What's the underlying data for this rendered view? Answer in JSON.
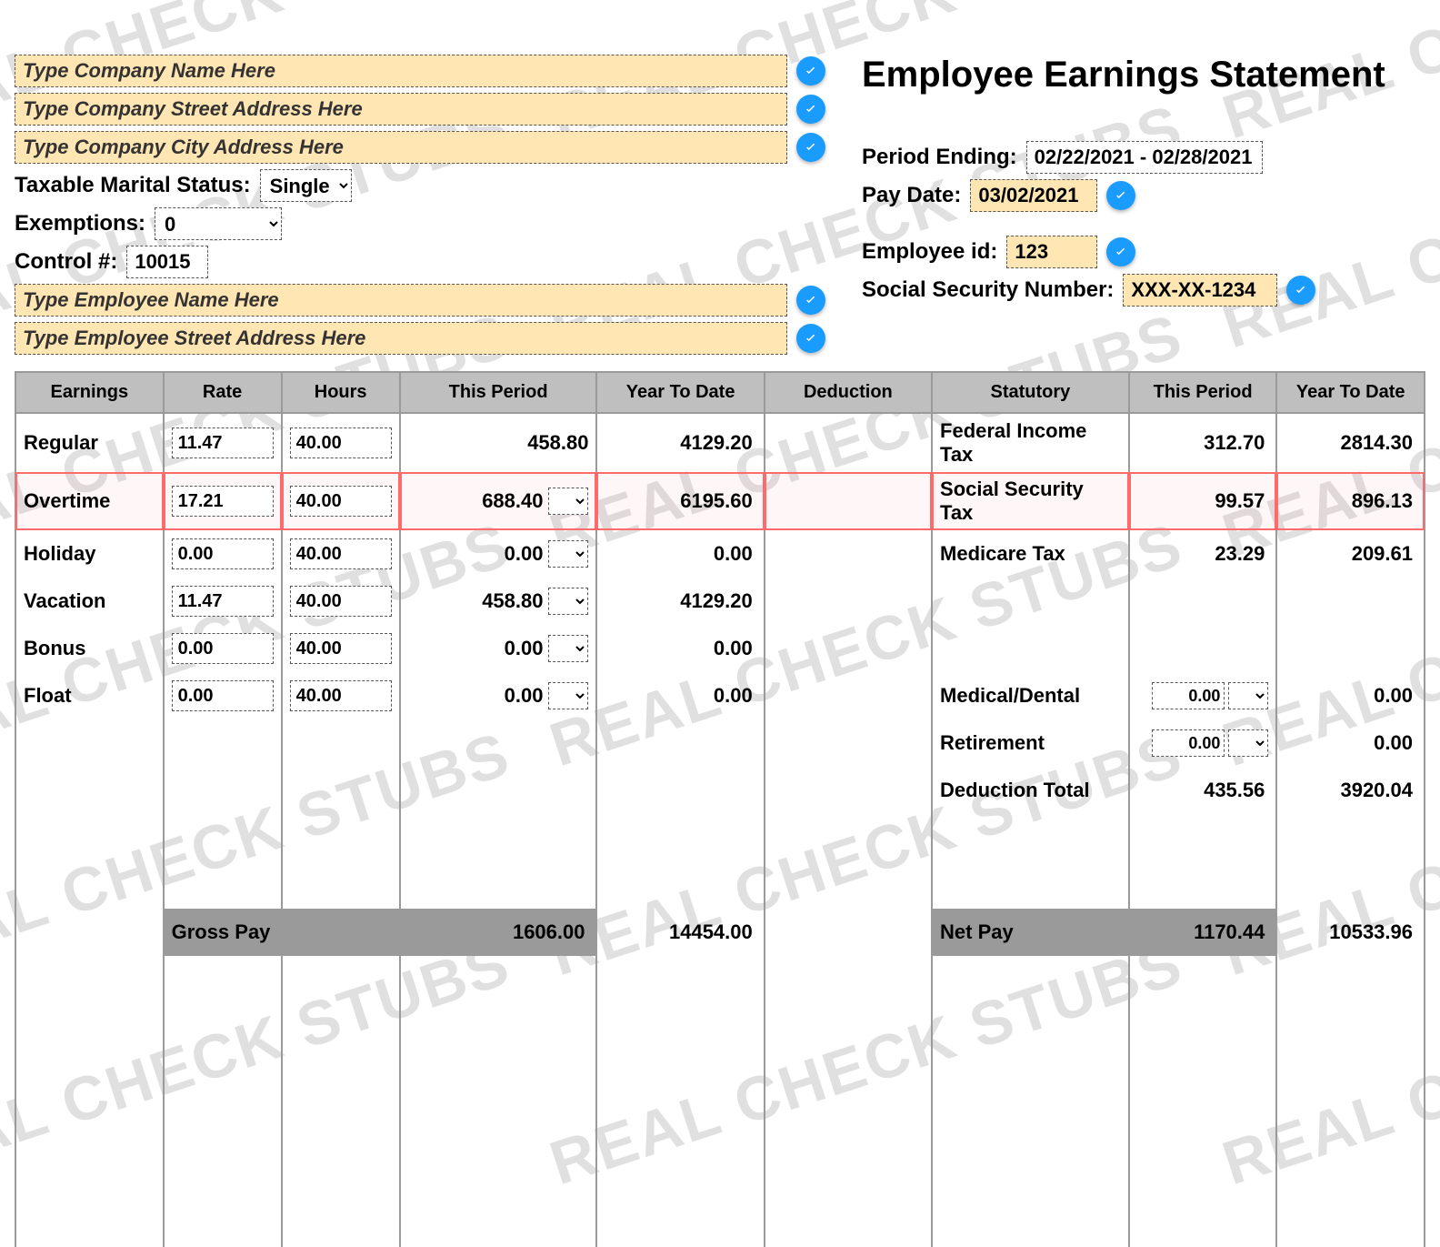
{
  "watermark_text": "REAL CHECK STUBS",
  "title": "Employee Earnings Statement",
  "company": {
    "name_placeholder": "Type Company Name Here",
    "street_placeholder": "Type Company Street Address Here",
    "city_placeholder": "Type Company City Address Here"
  },
  "tax_status": {
    "label": "Taxable Marital Status:",
    "value": "Single",
    "options": [
      "Single"
    ]
  },
  "exemptions": {
    "label": "Exemptions:",
    "value": "0",
    "options": [
      "0"
    ]
  },
  "control": {
    "label": "Control #:",
    "value": "10015"
  },
  "employee": {
    "name_placeholder": "Type Employee Name Here",
    "street_placeholder": "Type Employee Street Address Here"
  },
  "period": {
    "ending_label": "Period Ending:",
    "ending_value": "02/22/2021 - 02/28/2021",
    "pay_date_label": "Pay Date:",
    "pay_date_value": "03/02/2021"
  },
  "emp_id": {
    "label": "Employee id:",
    "value": "123"
  },
  "ssn": {
    "label": "Social Security Number:",
    "value": "XXX-XX-1234"
  },
  "headers": {
    "earnings": "Earnings",
    "rate": "Rate",
    "hours": "Hours",
    "this_period": "This Period",
    "ytd": "Year To Date",
    "deduction": "Deduction",
    "statutory": "Statutory",
    "this_period2": "This Period",
    "ytd2": "Year To Date"
  },
  "earnings_rows": [
    {
      "name": "Regular",
      "rate": "11.47",
      "hours": "40.00",
      "tp": "458.80",
      "ytd": "4129.20",
      "dd": false,
      "hl": false
    },
    {
      "name": "Overtime",
      "rate": "17.21",
      "hours": "40.00",
      "tp": "688.40",
      "ytd": "6195.60",
      "dd": true,
      "hl": true
    },
    {
      "name": "Holiday",
      "rate": "0.00",
      "hours": "40.00",
      "tp": "0.00",
      "ytd": "0.00",
      "dd": true,
      "hl": false
    },
    {
      "name": "Vacation",
      "rate": "11.47",
      "hours": "40.00",
      "tp": "458.80",
      "ytd": "4129.20",
      "dd": true,
      "hl": false
    },
    {
      "name": "Bonus",
      "rate": "0.00",
      "hours": "40.00",
      "tp": "0.00",
      "ytd": "0.00",
      "dd": true,
      "hl": false
    },
    {
      "name": "Float",
      "rate": "0.00",
      "hours": "40.00",
      "tp": "0.00",
      "ytd": "0.00",
      "dd": true,
      "hl": false
    }
  ],
  "statutory_rows": [
    {
      "name": "Federal Income Tax",
      "tp": "312.70",
      "ytd": "2814.30"
    },
    {
      "name": "Social Security Tax",
      "tp": "99.57",
      "ytd": "896.13"
    },
    {
      "name": "Medicare Tax",
      "tp": "23.29",
      "ytd": "209.61"
    }
  ],
  "deduction_rows": [
    {
      "name": "Medical/Dental",
      "tp": "0.00",
      "ytd": "0.00",
      "editable": true
    },
    {
      "name": "Retirement",
      "tp": "0.00",
      "ytd": "0.00",
      "editable": true
    },
    {
      "name": "Deduction Total",
      "tp": "435.56",
      "ytd": "3920.04",
      "editable": false
    }
  ],
  "totals": {
    "gross_label": "Gross Pay",
    "gross_tp": "1606.00",
    "gross_ytd": "14454.00",
    "net_label": "Net Pay",
    "net_tp": "1170.44",
    "net_ytd": "10533.96"
  },
  "colors": {
    "header_bg": "#bfbfbf",
    "highlight_bg": "#ffe6b3",
    "badge_bg": "#1a9cff",
    "row_hl": "#ff6b6b"
  }
}
